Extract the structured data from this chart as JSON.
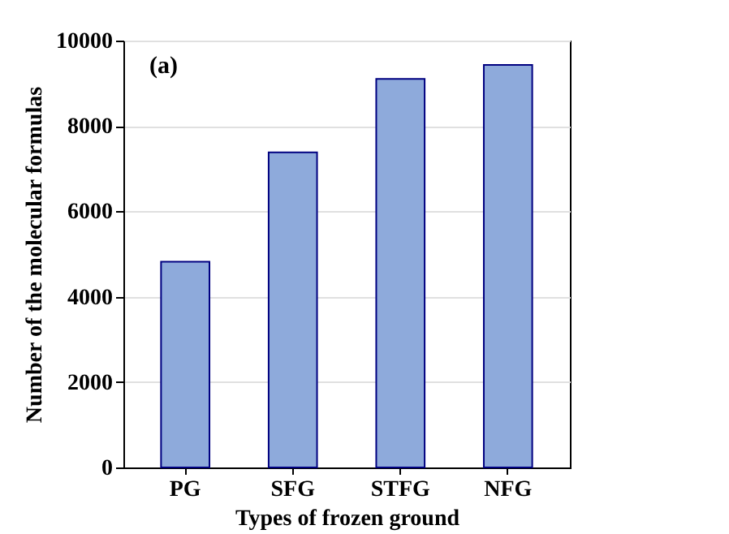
{
  "chart_data": {
    "type": "bar",
    "xlabel": "Types of frozen ground",
    "ylabel": "Number of the molecular formulas",
    "categories": [
      "PG",
      "SFG",
      "STFG",
      "NFG"
    ],
    "values": [
      4820,
      7380,
      9100,
      9430
    ],
    "color": "#8eaadb",
    "ylim": [
      0,
      10000
    ],
    "yticks": [
      0,
      2000,
      4000,
      6000,
      8000,
      10000
    ],
    "grid": "y",
    "annotations": [
      "(a)"
    ]
  }
}
